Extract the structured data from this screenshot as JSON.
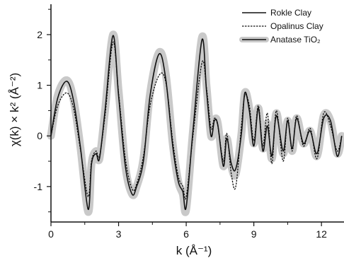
{
  "chart_data": {
    "type": "line",
    "title": "",
    "xlabel": "k (Å⁻¹)",
    "ylabel": "χ(k) × k² (Å⁻²)",
    "xlim": [
      0,
      13
    ],
    "ylim": [
      -1.7,
      2.6
    ],
    "xticks": [
      0,
      3,
      6,
      9,
      12
    ],
    "yticks": [
      -1,
      0,
      1,
      2
    ],
    "grid": false,
    "legend_position": "top-right",
    "series": [
      {
        "name": "Rokle Clay",
        "style": "solid",
        "color": "#111111",
        "x": [
          0,
          0.3,
          0.7,
          1.0,
          1.3,
          1.65,
          1.8,
          2.0,
          2.15,
          2.4,
          2.75,
          3.0,
          3.3,
          3.6,
          3.8,
          4.1,
          4.4,
          4.8,
          5.1,
          5.4,
          5.65,
          5.85,
          6.0,
          6.3,
          6.7,
          6.9,
          7.1,
          7.25,
          7.4,
          7.65,
          7.8,
          8.0,
          8.2,
          8.45,
          8.6,
          8.8,
          9.0,
          9.2,
          9.4,
          9.6,
          9.8,
          10.0,
          10.3,
          10.5,
          10.7,
          10.9,
          11.2,
          11.5,
          11.8,
          12.1,
          12.4,
          12.7,
          12.9
        ],
        "values": [
          0,
          0.75,
          1.08,
          0.7,
          -0.2,
          -1.45,
          -0.55,
          -0.35,
          -0.45,
          0.5,
          1.98,
          0.8,
          -0.6,
          -1.15,
          -1.0,
          -0.5,
          0.8,
          1.62,
          1.1,
          -0.2,
          -0.9,
          -1.1,
          -1.4,
          0.1,
          1.9,
          0.9,
          0.0,
          0.3,
          0.22,
          -0.6,
          -0.05,
          -0.55,
          -0.65,
          0.05,
          0.85,
          0.5,
          -0.2,
          0.55,
          -0.3,
          0.2,
          -0.4,
          0.4,
          -0.3,
          0.3,
          -0.25,
          0.35,
          -0.15,
          0.1,
          -0.35,
          0.35,
          0.3,
          -0.4,
          0.0
        ]
      },
      {
        "name": "Opalinus Clay",
        "style": "dashed",
        "color": "#111111",
        "x": [
          0,
          0.3,
          0.7,
          1.0,
          1.3,
          1.65,
          1.8,
          2.0,
          2.15,
          2.4,
          2.75,
          3.0,
          3.3,
          3.6,
          3.8,
          4.1,
          4.4,
          4.8,
          5.1,
          5.4,
          5.65,
          5.85,
          6.0,
          6.3,
          6.7,
          6.9,
          7.1,
          7.25,
          7.4,
          7.65,
          7.8,
          8.0,
          8.2,
          8.45,
          8.6,
          8.8,
          9.0,
          9.2,
          9.4,
          9.6,
          9.8,
          10.0,
          10.3,
          10.5,
          10.7,
          10.9,
          11.2,
          11.5,
          11.8,
          12.1,
          12.4,
          12.7,
          12.9
        ],
        "values": [
          0,
          0.6,
          0.85,
          0.55,
          -0.25,
          -1.2,
          -0.5,
          -0.3,
          -0.4,
          0.4,
          1.85,
          0.85,
          -0.45,
          -1.05,
          -0.95,
          -0.4,
          0.6,
          1.2,
          1.05,
          -0.1,
          -0.8,
          -1.0,
          -1.2,
          0.0,
          1.45,
          0.95,
          0.15,
          0.35,
          0.2,
          -0.5,
          0.05,
          -0.75,
          -1.0,
          0.2,
          0.8,
          0.6,
          -0.1,
          0.6,
          -0.2,
          0.45,
          -0.55,
          0.5,
          -0.5,
          0.35,
          -0.3,
          0.4,
          -0.2,
          0.15,
          -0.45,
          0.45,
          0.2,
          -0.3,
          0.0
        ]
      },
      {
        "name": "Anatase TiO₂",
        "style": "thick-gray",
        "color": "#c9c9c9",
        "x": [
          0,
          0.3,
          0.7,
          1.0,
          1.3,
          1.65,
          1.8,
          2.0,
          2.15,
          2.4,
          2.75,
          3.0,
          3.3,
          3.6,
          3.8,
          4.1,
          4.4,
          4.8,
          5.1,
          5.4,
          5.65,
          5.85,
          6.0,
          6.3,
          6.7,
          6.9,
          7.1,
          7.25,
          7.4,
          7.65,
          7.8,
          8.0,
          8.2,
          8.45,
          8.6,
          8.8,
          9.0,
          9.2,
          9.4,
          9.6,
          9.8,
          10.0,
          10.3,
          10.5,
          10.7,
          10.9,
          11.2,
          11.5,
          11.8,
          12.1,
          12.4,
          12.7,
          12.9
        ],
        "values": [
          0,
          0.8,
          1.1,
          0.72,
          -0.2,
          -1.5,
          -0.55,
          -0.3,
          -0.45,
          0.5,
          2.0,
          0.9,
          -0.6,
          -1.15,
          -1.0,
          -0.45,
          0.85,
          1.65,
          1.2,
          -0.15,
          -0.9,
          -1.15,
          -1.45,
          0.1,
          1.95,
          1.0,
          0.0,
          0.3,
          0.25,
          -0.6,
          -0.05,
          -0.6,
          -0.75,
          0.05,
          0.85,
          0.55,
          -0.15,
          0.55,
          -0.25,
          0.25,
          -0.45,
          0.45,
          -0.35,
          0.3,
          -0.3,
          0.35,
          -0.15,
          0.1,
          -0.4,
          0.4,
          0.3,
          -0.35,
          0.0
        ]
      }
    ]
  }
}
